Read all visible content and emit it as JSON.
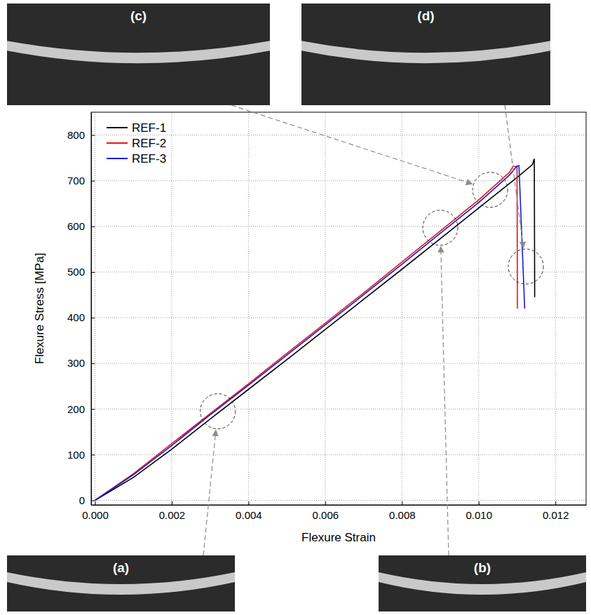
{
  "chart_data": {
    "type": "line",
    "x_label": "Flexure Strain",
    "y_label": "Flexure Stress [MPa]",
    "xlim": [
      -0.0001,
      0.0128
    ],
    "ylim": [
      -10,
      850
    ],
    "xticks": [
      {
        "value": 0,
        "label": "0.000"
      },
      {
        "value": 0.002,
        "label": "0.002"
      },
      {
        "value": 0.004,
        "label": "0.004"
      },
      {
        "value": 0.006,
        "label": "0.006"
      },
      {
        "value": 0.008,
        "label": "0.008"
      },
      {
        "value": 0.01,
        "label": "0.010"
      },
      {
        "value": 0.012,
        "label": "0.012"
      }
    ],
    "yticks": [
      0,
      100,
      200,
      300,
      400,
      500,
      600,
      700,
      800
    ],
    "grid": true,
    "legend": "upper left",
    "series": [
      {
        "name": "REF-1",
        "color": "#000000",
        "x": [
          0,
          0.001,
          0.002,
          0.003,
          0.004,
          0.005,
          0.006,
          0.007,
          0.008,
          0.009,
          0.01,
          0.011,
          0.0114,
          0.01145,
          0.01146
        ],
        "values": [
          0,
          50,
          112,
          178,
          243,
          308,
          374,
          440,
          506,
          573,
          640,
          707,
          735,
          748,
          445
        ]
      },
      {
        "name": "REF-2",
        "color": "#e8141c",
        "x": [
          0,
          0.001,
          0.002,
          0.003,
          0.004,
          0.005,
          0.006,
          0.007,
          0.008,
          0.009,
          0.01,
          0.0108,
          0.0109,
          0.011,
          0.01101
        ],
        "values": [
          0,
          58,
          124,
          190,
          255,
          322,
          388,
          454,
          522,
          590,
          658,
          718,
          732,
          730,
          420
        ]
      },
      {
        "name": "REF-3",
        "color": "#1a1ad6",
        "x": [
          0,
          0.001,
          0.002,
          0.003,
          0.004,
          0.005,
          0.006,
          0.007,
          0.008,
          0.009,
          0.01,
          0.0108,
          0.011,
          0.01105,
          0.0112
        ],
        "values": [
          0,
          56,
          120,
          187,
          252,
          318,
          384,
          450,
          517,
          585,
          652,
          712,
          732,
          733,
          420
        ]
      }
    ],
    "annotations": [
      {
        "label": "(a)",
        "x": 0.0032,
        "y": 195
      },
      {
        "label": "(b)",
        "x": 0.009,
        "y": 597
      },
      {
        "label": "(c)",
        "x": 0.0103,
        "y": 680
      },
      {
        "label": "(d)",
        "x": 0.01123,
        "y": 512
      }
    ]
  }
}
